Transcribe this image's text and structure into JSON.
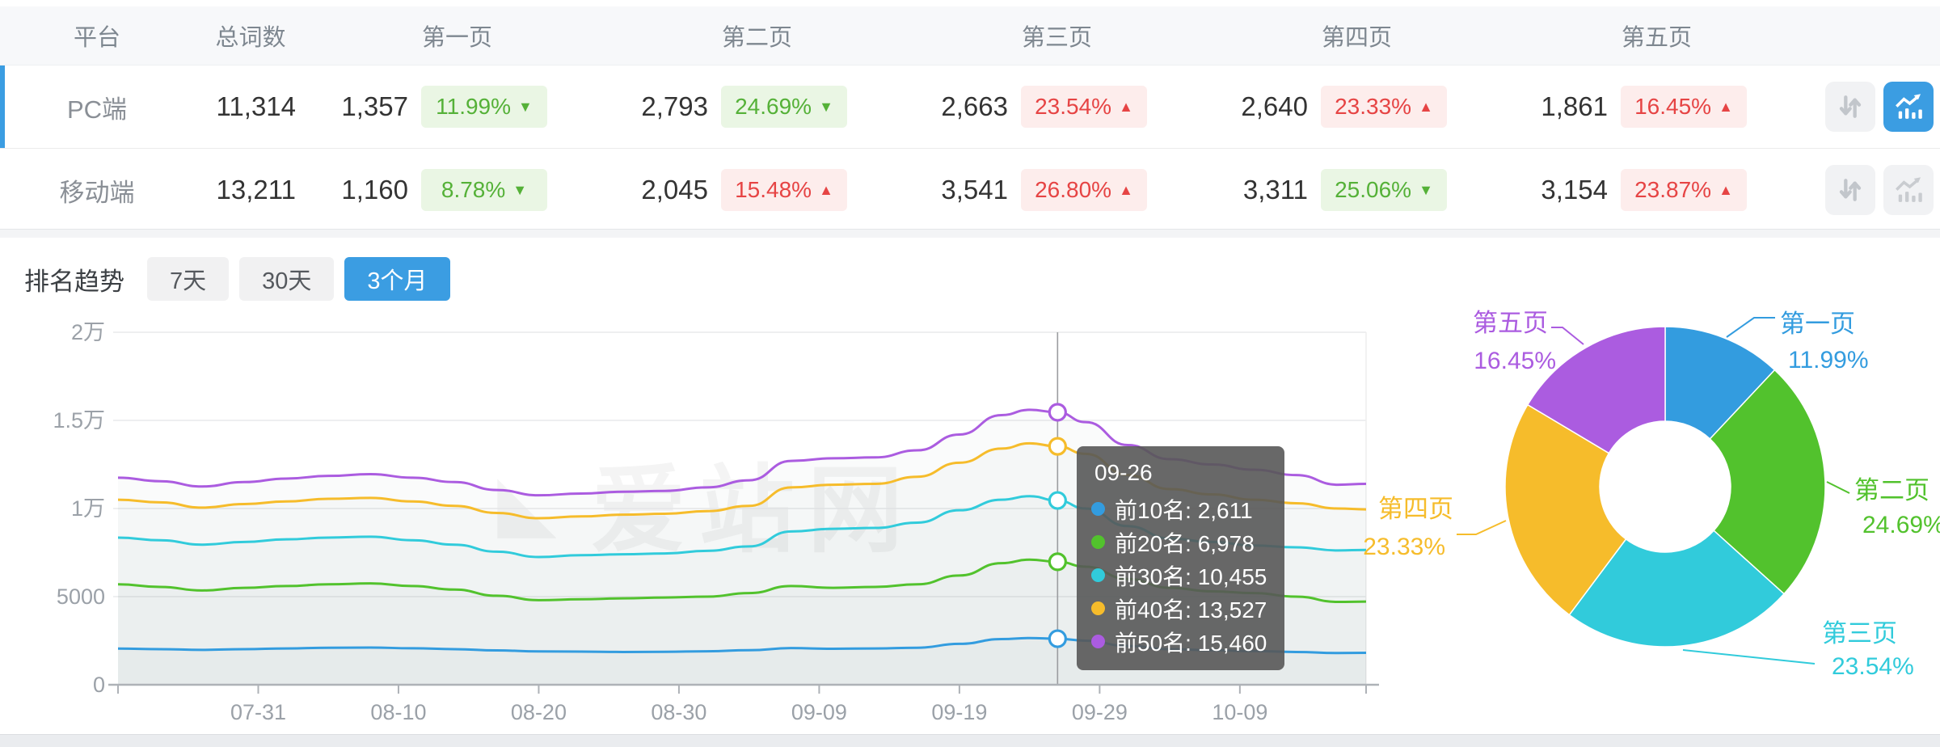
{
  "colors": {
    "accent_blue": "#3b9de2",
    "badge_up_red": "#e64444",
    "badge_down_green": "#55b138",
    "series_blue": "#339cdf",
    "series_green": "#52c22d",
    "series_cyan": "#31cbdb",
    "series_yellow": "#f6bc2b",
    "series_purple": "#ab5ce0"
  },
  "icons": {
    "row_compare": "compare-arrows-icon",
    "row_trend": "trend-chart-icon"
  },
  "table": {
    "columns": [
      "平台",
      "总词数",
      "第一页",
      "第二页",
      "第三页",
      "第四页",
      "第五页"
    ],
    "rows": [
      {
        "platform": "PC端",
        "total": "11,314",
        "selected": true,
        "trend_active": true,
        "pages": [
          {
            "count": "1,357",
            "pct": "11.99%",
            "dir": "down"
          },
          {
            "count": "2,793",
            "pct": "24.69%",
            "dir": "down"
          },
          {
            "count": "2,663",
            "pct": "23.54%",
            "dir": "up"
          },
          {
            "count": "2,640",
            "pct": "23.33%",
            "dir": "up"
          },
          {
            "count": "1,861",
            "pct": "16.45%",
            "dir": "up"
          }
        ]
      },
      {
        "platform": "移动端",
        "total": "13,211",
        "selected": false,
        "trend_active": false,
        "pages": [
          {
            "count": "1,160",
            "pct": "8.78%",
            "dir": "down"
          },
          {
            "count": "2,045",
            "pct": "15.48%",
            "dir": "up"
          },
          {
            "count": "3,541",
            "pct": "26.80%",
            "dir": "up"
          },
          {
            "count": "3,311",
            "pct": "25.06%",
            "dir": "down"
          },
          {
            "count": "3,154",
            "pct": "23.87%",
            "dir": "up"
          }
        ]
      }
    ]
  },
  "trend": {
    "label": "排名趋势",
    "tabs": [
      "7天",
      "30天",
      "3个月"
    ],
    "active_tab": 2
  },
  "watermark": "爱站网",
  "chart_data": [
    {
      "type": "line",
      "title": "排名趋势 (3个月)",
      "x_start_date": "07-21",
      "x_days": [
        0,
        3,
        6,
        9,
        12,
        15,
        18,
        21,
        24,
        27,
        30,
        33,
        36,
        39,
        42,
        45,
        48,
        51,
        54,
        57,
        60,
        63,
        65,
        67,
        69,
        72,
        75,
        78,
        81,
        84,
        87,
        89
      ],
      "x_tick_days": [
        10,
        20,
        30,
        40,
        50,
        60,
        70,
        80
      ],
      "x_tick_labels": [
        "07-31",
        "08-10",
        "08-20",
        "08-30",
        "09-09",
        "09-19",
        "09-29",
        "10-09"
      ],
      "ylim": [
        0,
        20000
      ],
      "y_ticks": [
        {
          "v": 0,
          "label": "0"
        },
        {
          "v": 5000,
          "label": "5000"
        },
        {
          "v": 10000,
          "label": "1万"
        },
        {
          "v": 15000,
          "label": "1.5万"
        },
        {
          "v": 20000,
          "label": "2万"
        }
      ],
      "grid": true,
      "series": [
        {
          "name": "前10名",
          "color": "#339cdf",
          "values": [
            2050,
            2020,
            1980,
            2020,
            2060,
            2100,
            2110,
            2070,
            2020,
            1950,
            1890,
            1880,
            1860,
            1870,
            1900,
            1960,
            2080,
            2040,
            2060,
            2100,
            2320,
            2590,
            2650,
            2611,
            2500,
            2200,
            2020,
            1960,
            1910,
            1860,
            1800,
            1810
          ]
        },
        {
          "name": "前20名",
          "color": "#52c22d",
          "values": [
            5700,
            5550,
            5350,
            5500,
            5600,
            5700,
            5750,
            5600,
            5400,
            5050,
            4800,
            4850,
            4900,
            4950,
            5000,
            5200,
            5600,
            5500,
            5550,
            5700,
            6200,
            6900,
            7100,
            6978,
            6700,
            6000,
            5500,
            5300,
            5200,
            5000,
            4700,
            4720
          ]
        },
        {
          "name": "前30名",
          "color": "#31cbdb",
          "values": [
            8350,
            8200,
            7950,
            8100,
            8250,
            8350,
            8400,
            8200,
            7950,
            7550,
            7250,
            7350,
            7400,
            7450,
            7600,
            7850,
            8700,
            8850,
            8900,
            9200,
            9900,
            10500,
            10700,
            10455,
            10000,
            9000,
            8300,
            8100,
            7900,
            7800,
            7620,
            7650
          ]
        },
        {
          "name": "前40名",
          "color": "#f6bc2b",
          "values": [
            10500,
            10350,
            10050,
            10250,
            10400,
            10550,
            10600,
            10400,
            10150,
            9750,
            9450,
            9550,
            9650,
            9700,
            9850,
            10150,
            11200,
            11350,
            11400,
            11800,
            12600,
            13400,
            13700,
            13527,
            13100,
            11900,
            11100,
            10800,
            10500,
            10300,
            10000,
            9950
          ]
        },
        {
          "name": "前50名",
          "color": "#ab5ce0",
          "values": [
            11750,
            11550,
            11250,
            11500,
            11700,
            11850,
            11950,
            11750,
            11500,
            11050,
            10750,
            10850,
            10950,
            11000,
            11200,
            11600,
            12700,
            12850,
            12900,
            13300,
            14200,
            15300,
            15600,
            15460,
            14900,
            13600,
            12800,
            12500,
            12200,
            11900,
            11350,
            11400
          ]
        }
      ],
      "crosshair": {
        "day": 67,
        "date": "09-26"
      },
      "tooltip": {
        "title": "09-26",
        "items": [
          {
            "name": "前10名",
            "value": "2,611",
            "raw": 2611,
            "color": "#339cdf"
          },
          {
            "name": "前20名",
            "value": "6,978",
            "raw": 6978,
            "color": "#52c22d"
          },
          {
            "name": "前30名",
            "value": "10,455",
            "raw": 10455,
            "color": "#31cbdb"
          },
          {
            "name": "前40名",
            "value": "13,527",
            "raw": 13527,
            "color": "#f6bc2b"
          },
          {
            "name": "前50名",
            "value": "15,460",
            "raw": 15460,
            "color": "#ab5ce0"
          }
        ]
      }
    },
    {
      "type": "pie",
      "subtype": "donut",
      "inner_radius_ratio": 0.41,
      "slices": [
        {
          "label": "第一页",
          "value": 11.99,
          "display": "11.99%",
          "color": "#339cdf"
        },
        {
          "label": "第二页",
          "value": 24.69,
          "display": "24.69%",
          "color": "#52c22d"
        },
        {
          "label": "第三页",
          "value": 23.54,
          "display": "23.54%",
          "color": "#31cbdb"
        },
        {
          "label": "第四页",
          "value": 23.33,
          "display": "23.33%",
          "color": "#f6bc2b"
        },
        {
          "label": "第五页",
          "value": 16.45,
          "display": "16.45%",
          "color": "#ab5ce0"
        }
      ]
    }
  ]
}
